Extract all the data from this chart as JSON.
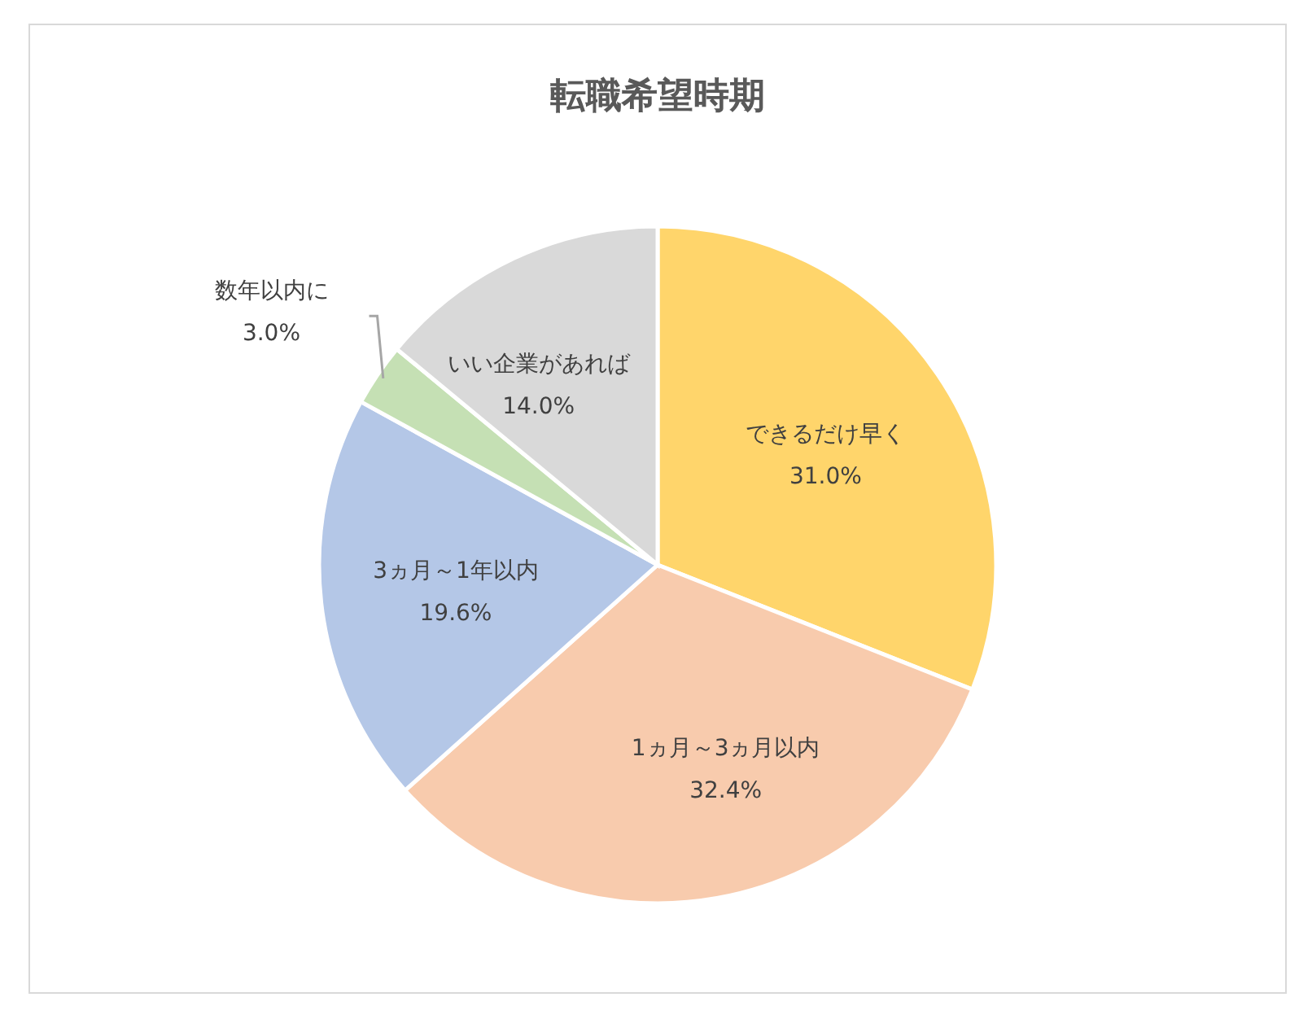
{
  "chart_data": {
    "type": "pie",
    "title": "転職希望時期",
    "categories": [
      "できるだけ早く",
      "1ヵ月～3ヵ月以内",
      "3ヵ月～1年以内",
      "数年以内に",
      "いい企業があれば"
    ],
    "values": [
      31.0,
      32.4,
      19.6,
      3.0,
      14.0
    ],
    "value_labels": [
      "31.0%",
      "32.4%",
      "19.6%",
      "3.0%",
      "14.0%"
    ],
    "colors": [
      "#ffd56b",
      "#f8cbad",
      "#b4c7e7",
      "#c5e0b4",
      "#d9d9d9"
    ]
  }
}
